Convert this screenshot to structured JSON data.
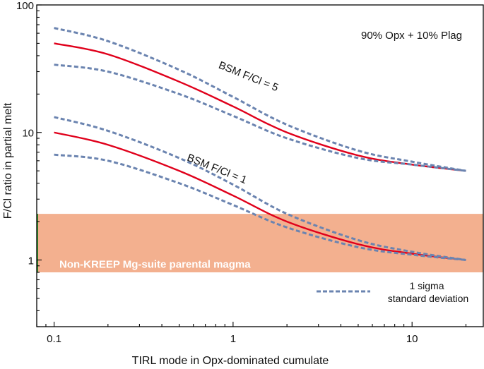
{
  "chart_data": {
    "type": "line",
    "xscale": "log",
    "yscale": "log",
    "xlabel": "TIRL mode in Opx-dominated cumulate",
    "ylabel": "F/Cl ratio in partial melt",
    "xlim": [
      0.08,
      25
    ],
    "ylim": [
      0.3,
      100
    ],
    "xticks": [
      0.1,
      1,
      10
    ],
    "xtick_labels": [
      "0.1",
      "1",
      "10"
    ],
    "yticks": [
      1,
      10,
      100
    ],
    "ytick_labels": [
      "1",
      "10",
      "100"
    ],
    "annotation": "90% Opx + 10% Plag",
    "band": {
      "label": "Non-KREEP Mg-suite parental magma",
      "ymin": 0.8,
      "ymax": 2.3,
      "color": "#f3b08f"
    },
    "x": [
      0.1,
      0.2,
      0.5,
      1,
      2,
      5,
      10,
      20
    ],
    "series": [
      {
        "name": "BSM F/Cl = 5",
        "style": "solid",
        "color": "#e0001b",
        "values": [
          50,
          41,
          25,
          16,
          10,
          6.6,
          5.6,
          5.0
        ]
      },
      {
        "name": "BSM F/Cl = 5 upper",
        "style": "dashed",
        "color": "#6b84b0",
        "values": [
          66,
          52,
          31,
          19,
          11.5,
          7.2,
          5.9,
          5.0
        ]
      },
      {
        "name": "BSM F/Cl = 5 lower",
        "style": "dashed",
        "color": "#6b84b0",
        "values": [
          34,
          30,
          20,
          13.5,
          9,
          6.3,
          5.6,
          5.0
        ]
      },
      {
        "name": "BSM F/Cl = 1",
        "style": "solid",
        "color": "#e0001b",
        "values": [
          10,
          8,
          5,
          3.2,
          2.0,
          1.33,
          1.12,
          1.0
        ]
      },
      {
        "name": "BSM F/Cl = 1 upper",
        "style": "dashed",
        "color": "#6b84b0",
        "values": [
          13.2,
          10.3,
          6.3,
          3.9,
          2.3,
          1.43,
          1.16,
          1.0
        ]
      },
      {
        "name": "BSM F/Cl = 1 lower",
        "style": "dashed",
        "color": "#6b84b0",
        "values": [
          6.7,
          6.0,
          4.0,
          2.7,
          1.8,
          1.26,
          1.1,
          1.0
        ]
      }
    ],
    "curve_labels": [
      {
        "text": "BSM F/Cl = 5",
        "x": 1.2,
        "y": 26,
        "angle": 22
      },
      {
        "text": "BSM F/Cl = 1",
        "x": 0.8,
        "y": 4.9,
        "angle": 22
      }
    ],
    "legend": {
      "line1": "1 sigma",
      "line2": "standard deviation",
      "position": "bottom-right"
    }
  }
}
